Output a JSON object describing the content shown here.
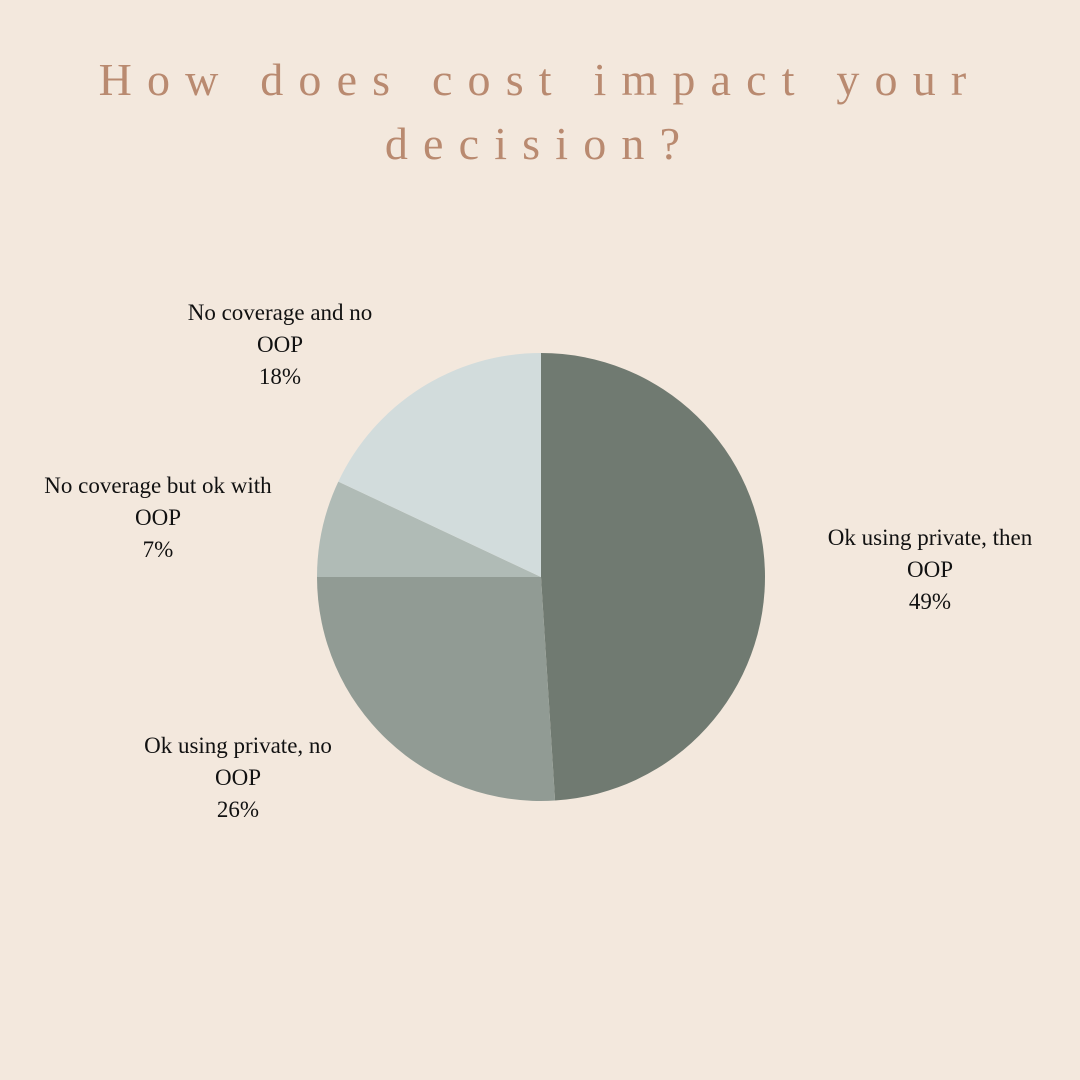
{
  "chart_data": {
    "type": "pie",
    "title": "How does cost impact your decision?",
    "categories": [
      "Ok using private, then OOP",
      "Ok using private, no OOP",
      "No coverage but ok with OOP",
      "No coverage and no OOP"
    ],
    "values": [
      49,
      26,
      7,
      18
    ],
    "value_labels": [
      "49%",
      "26%",
      "7%",
      "18%"
    ],
    "colors": [
      "#707a71",
      "#919b94",
      "#b0bbb6",
      "#d2dcdc"
    ]
  }
}
